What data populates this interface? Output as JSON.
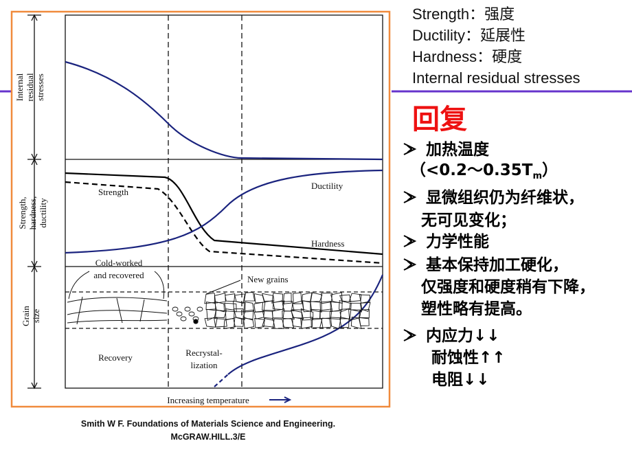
{
  "figure": {
    "panel_labels": {
      "stresses": [
        "Internal",
        "residual",
        "stresses"
      ],
      "properties": [
        "Strength,",
        "hardness,",
        "ductility"
      ],
      "grain": [
        "Grain",
        "size"
      ]
    },
    "curve_labels": {
      "strength": "Strength",
      "ductility": "Ductility",
      "hardness": "Hardness"
    },
    "annotations": {
      "cold_worked": [
        "Cold-worked",
        "and recovered"
      ],
      "new_grains": "New grains"
    },
    "stages": {
      "recovery": "Recovery",
      "recrystallization": [
        "Recrystal-",
        "lization"
      ]
    },
    "x_axis_label": "Increasing temperature"
  },
  "citation": [
    "Smith W F. Foundations of Materials Science and Engineering.",
    "McGRAW.HILL.3/E"
  ],
  "glossary": [
    "Strength：强度",
    "Ductility：延展性",
    "Hardness：硬度",
    "Internal residual stresses"
  ],
  "section_title": "回复",
  "bullets": [
    {
      "lines": [
        "加热温度"
      ],
      "note": [
        "（<0.2～0.35T",
        "m",
        "）"
      ]
    },
    {
      "lines": [
        "显微组织仍为纤维状，",
        "无可见变化；"
      ]
    },
    {
      "lines": [
        "力学性能"
      ]
    },
    {
      "lines": [
        "基本保持加工硬化，",
        "仅强度和硬度稍有下降，",
        "塑性略有提高。"
      ]
    },
    {
      "lines": [
        "内应力↓↓",
        "耐蚀性↑↑",
        "电阻↓↓"
      ]
    }
  ]
}
